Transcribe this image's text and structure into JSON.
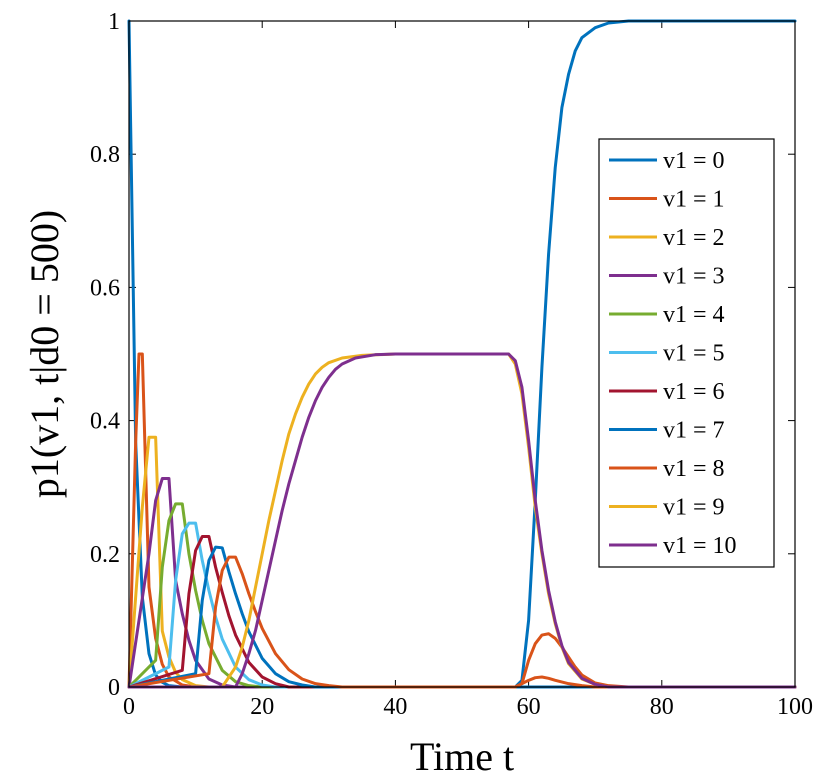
{
  "chart_data": {
    "type": "line",
    "title": "",
    "xlabel": "Time t",
    "ylabel": "p1(v1, t|d0 = 500)",
    "xlim": [
      0,
      100
    ],
    "ylim": [
      0,
      1
    ],
    "xticks": [
      0,
      20,
      40,
      60,
      80,
      100
    ],
    "yticks": [
      0,
      0.2,
      0.4,
      0.6,
      0.8,
      1
    ],
    "xtick_labels": [
      "0",
      "20",
      "40",
      "60",
      "80",
      "100"
    ],
    "ytick_labels": [
      "0",
      "0.2",
      "0.4",
      "0.6",
      "0.8",
      "1"
    ],
    "grid": false,
    "legend_position": "right",
    "series": [
      {
        "name": "v1 = 0",
        "color": "#0072BD",
        "points": [
          [
            0,
            1
          ],
          [
            1,
            0.368
          ],
          [
            2,
            0.135
          ],
          [
            3,
            0.05
          ],
          [
            4,
            0.018
          ],
          [
            5,
            0.007
          ],
          [
            6,
            0.002
          ],
          [
            8,
            0
          ],
          [
            58,
            0
          ],
          [
            59,
            0.01
          ],
          [
            60,
            0.1
          ],
          [
            61,
            0.28
          ],
          [
            62,
            0.48
          ],
          [
            63,
            0.65
          ],
          [
            64,
            0.78
          ],
          [
            65,
            0.87
          ],
          [
            66,
            0.92
          ],
          [
            67,
            0.955
          ],
          [
            68,
            0.975
          ],
          [
            70,
            0.99
          ],
          [
            72,
            0.997
          ],
          [
            75,
            1
          ],
          [
            100,
            1
          ]
        ]
      },
      {
        "name": "v1 = 1",
        "color": "#D95319",
        "points": [
          [
            0,
            0
          ],
          [
            1,
            0.368
          ],
          [
            1.5,
            0.5
          ],
          [
            2,
            0.5
          ],
          [
            3,
            0.15
          ],
          [
            4,
            0.073
          ],
          [
            5,
            0.034
          ],
          [
            6,
            0.015
          ],
          [
            8,
            0.003
          ],
          [
            10,
            0
          ],
          [
            58,
            0
          ],
          [
            59,
            0.005
          ],
          [
            60,
            0.04
          ],
          [
            61,
            0.065
          ],
          [
            62,
            0.078
          ],
          [
            63,
            0.08
          ],
          [
            64,
            0.073
          ],
          [
            65,
            0.06
          ],
          [
            66,
            0.045
          ],
          [
            67,
            0.03
          ],
          [
            68,
            0.018
          ],
          [
            70,
            0.006
          ],
          [
            72,
            0.002
          ],
          [
            75,
            0
          ],
          [
            100,
            0
          ]
        ]
      },
      {
        "name": "v1 = 2",
        "color": "#EDB120",
        "points": [
          [
            0,
            0
          ],
          [
            2,
            0.27
          ],
          [
            3,
            0.375
          ],
          [
            4,
            0.375
          ],
          [
            5,
            0.084
          ],
          [
            6,
            0.045
          ],
          [
            7,
            0.022
          ],
          [
            8,
            0.011
          ],
          [
            10,
            0.002
          ],
          [
            12,
            0
          ],
          [
            100,
            0
          ]
        ]
      },
      {
        "name": "v1 = 3",
        "color": "#7E2F8E",
        "points": [
          [
            0,
            0
          ],
          [
            3,
            0.2
          ],
          [
            4,
            0.28
          ],
          [
            5,
            0.313
          ],
          [
            6,
            0.313
          ],
          [
            7,
            0.16
          ],
          [
            8,
            0.11
          ],
          [
            9,
            0.07
          ],
          [
            10,
            0.04
          ],
          [
            12,
            0.012
          ],
          [
            14,
            0.003
          ],
          [
            16,
            0
          ],
          [
            100,
            0
          ]
        ]
      },
      {
        "name": "v1 = 4",
        "color": "#77AC30",
        "points": [
          [
            0,
            0
          ],
          [
            4,
            0.04
          ],
          [
            5,
            0.18
          ],
          [
            6,
            0.25
          ],
          [
            7,
            0.275
          ],
          [
            8,
            0.275
          ],
          [
            9,
            0.2
          ],
          [
            10,
            0.145
          ],
          [
            11,
            0.1
          ],
          [
            12,
            0.065
          ],
          [
            14,
            0.025
          ],
          [
            16,
            0.008
          ],
          [
            18,
            0.002
          ],
          [
            20,
            0
          ],
          [
            100,
            0
          ]
        ]
      },
      {
        "name": "v1 = 5",
        "color": "#4DBEEE",
        "points": [
          [
            0,
            0
          ],
          [
            6,
            0.03
          ],
          [
            7,
            0.16
          ],
          [
            8,
            0.23
          ],
          [
            9,
            0.246
          ],
          [
            10,
            0.246
          ],
          [
            11,
            0.19
          ],
          [
            12,
            0.145
          ],
          [
            13,
            0.105
          ],
          [
            14,
            0.072
          ],
          [
            16,
            0.03
          ],
          [
            18,
            0.011
          ],
          [
            20,
            0.003
          ],
          [
            22,
            0
          ],
          [
            100,
            0
          ]
        ]
      },
      {
        "name": "v1 = 6",
        "color": "#A2142F",
        "points": [
          [
            0,
            0
          ],
          [
            8,
            0.025
          ],
          [
            9,
            0.14
          ],
          [
            10,
            0.205
          ],
          [
            11,
            0.226
          ],
          [
            12,
            0.226
          ],
          [
            13,
            0.18
          ],
          [
            14,
            0.142
          ],
          [
            15,
            0.107
          ],
          [
            16,
            0.078
          ],
          [
            18,
            0.037
          ],
          [
            20,
            0.015
          ],
          [
            22,
            0.005
          ],
          [
            24,
            0
          ],
          [
            100,
            0
          ]
        ]
      },
      {
        "name": "v1 = 7",
        "color": "#0072BD",
        "points": [
          [
            0,
            0
          ],
          [
            10,
            0.02
          ],
          [
            11,
            0.13
          ],
          [
            12,
            0.19
          ],
          [
            13,
            0.21
          ],
          [
            14,
            0.209
          ],
          [
            15,
            0.173
          ],
          [
            16,
            0.14
          ],
          [
            17,
            0.11
          ],
          [
            18,
            0.083
          ],
          [
            20,
            0.043
          ],
          [
            22,
            0.02
          ],
          [
            24,
            0.008
          ],
          [
            26,
            0.003
          ],
          [
            28,
            0
          ],
          [
            100,
            0
          ]
        ]
      },
      {
        "name": "v1 = 8",
        "color": "#D95319",
        "points": [
          [
            0,
            0
          ],
          [
            12,
            0.02
          ],
          [
            13,
            0.12
          ],
          [
            14,
            0.175
          ],
          [
            15,
            0.195
          ],
          [
            16,
            0.195
          ],
          [
            17,
            0.17
          ],
          [
            18,
            0.14
          ],
          [
            19,
            0.113
          ],
          [
            20,
            0.088
          ],
          [
            22,
            0.05
          ],
          [
            24,
            0.026
          ],
          [
            26,
            0.012
          ],
          [
            28,
            0.005
          ],
          [
            30,
            0.002
          ],
          [
            32,
            0
          ],
          [
            58,
            0
          ],
          [
            60,
            0.01
          ],
          [
            61,
            0.014
          ],
          [
            62,
            0.015
          ],
          [
            63,
            0.013
          ],
          [
            64,
            0.01
          ],
          [
            66,
            0.005
          ],
          [
            68,
            0.002
          ],
          [
            70,
            0
          ],
          [
            100,
            0
          ]
        ]
      },
      {
        "name": "v1 = 9",
        "color": "#EDB120",
        "points": [
          [
            0,
            0
          ],
          [
            14,
            0
          ],
          [
            16,
            0.03
          ],
          [
            17,
            0.06
          ],
          [
            18,
            0.1
          ],
          [
            19,
            0.15
          ],
          [
            20,
            0.2
          ],
          [
            21,
            0.25
          ],
          [
            22,
            0.295
          ],
          [
            23,
            0.34
          ],
          [
            24,
            0.38
          ],
          [
            25,
            0.41
          ],
          [
            26,
            0.435
          ],
          [
            27,
            0.455
          ],
          [
            28,
            0.47
          ],
          [
            29,
            0.48
          ],
          [
            30,
            0.487
          ],
          [
            32,
            0.494
          ],
          [
            35,
            0.498
          ],
          [
            40,
            0.5
          ],
          [
            57,
            0.5
          ],
          [
            58,
            0.485
          ],
          [
            59,
            0.44
          ],
          [
            60,
            0.36
          ],
          [
            61,
            0.27
          ],
          [
            62,
            0.2
          ],
          [
            63,
            0.14
          ],
          [
            64,
            0.095
          ],
          [
            65,
            0.06
          ],
          [
            66,
            0.035
          ],
          [
            68,
            0.012
          ],
          [
            70,
            0.004
          ],
          [
            72,
            0
          ],
          [
            100,
            0
          ]
        ]
      },
      {
        "name": "v1 = 10",
        "color": "#7E2F8E",
        "points": [
          [
            0,
            0
          ],
          [
            16,
            0
          ],
          [
            17,
            0.02
          ],
          [
            18,
            0.05
          ],
          [
            19,
            0.085
          ],
          [
            20,
            0.13
          ],
          [
            21,
            0.175
          ],
          [
            22,
            0.22
          ],
          [
            23,
            0.265
          ],
          [
            24,
            0.305
          ],
          [
            25,
            0.34
          ],
          [
            26,
            0.375
          ],
          [
            27,
            0.405
          ],
          [
            28,
            0.43
          ],
          [
            29,
            0.45
          ],
          [
            30,
            0.465
          ],
          [
            31,
            0.477
          ],
          [
            32,
            0.485
          ],
          [
            34,
            0.494
          ],
          [
            37,
            0.499
          ],
          [
            40,
            0.5
          ],
          [
            57,
            0.5
          ],
          [
            58,
            0.49
          ],
          [
            59,
            0.45
          ],
          [
            60,
            0.37
          ],
          [
            61,
            0.28
          ],
          [
            62,
            0.205
          ],
          [
            63,
            0.145
          ],
          [
            64,
            0.098
          ],
          [
            65,
            0.062
          ],
          [
            66,
            0.037
          ],
          [
            68,
            0.013
          ],
          [
            70,
            0.004
          ],
          [
            72,
            0
          ],
          [
            100,
            0
          ]
        ]
      }
    ]
  }
}
